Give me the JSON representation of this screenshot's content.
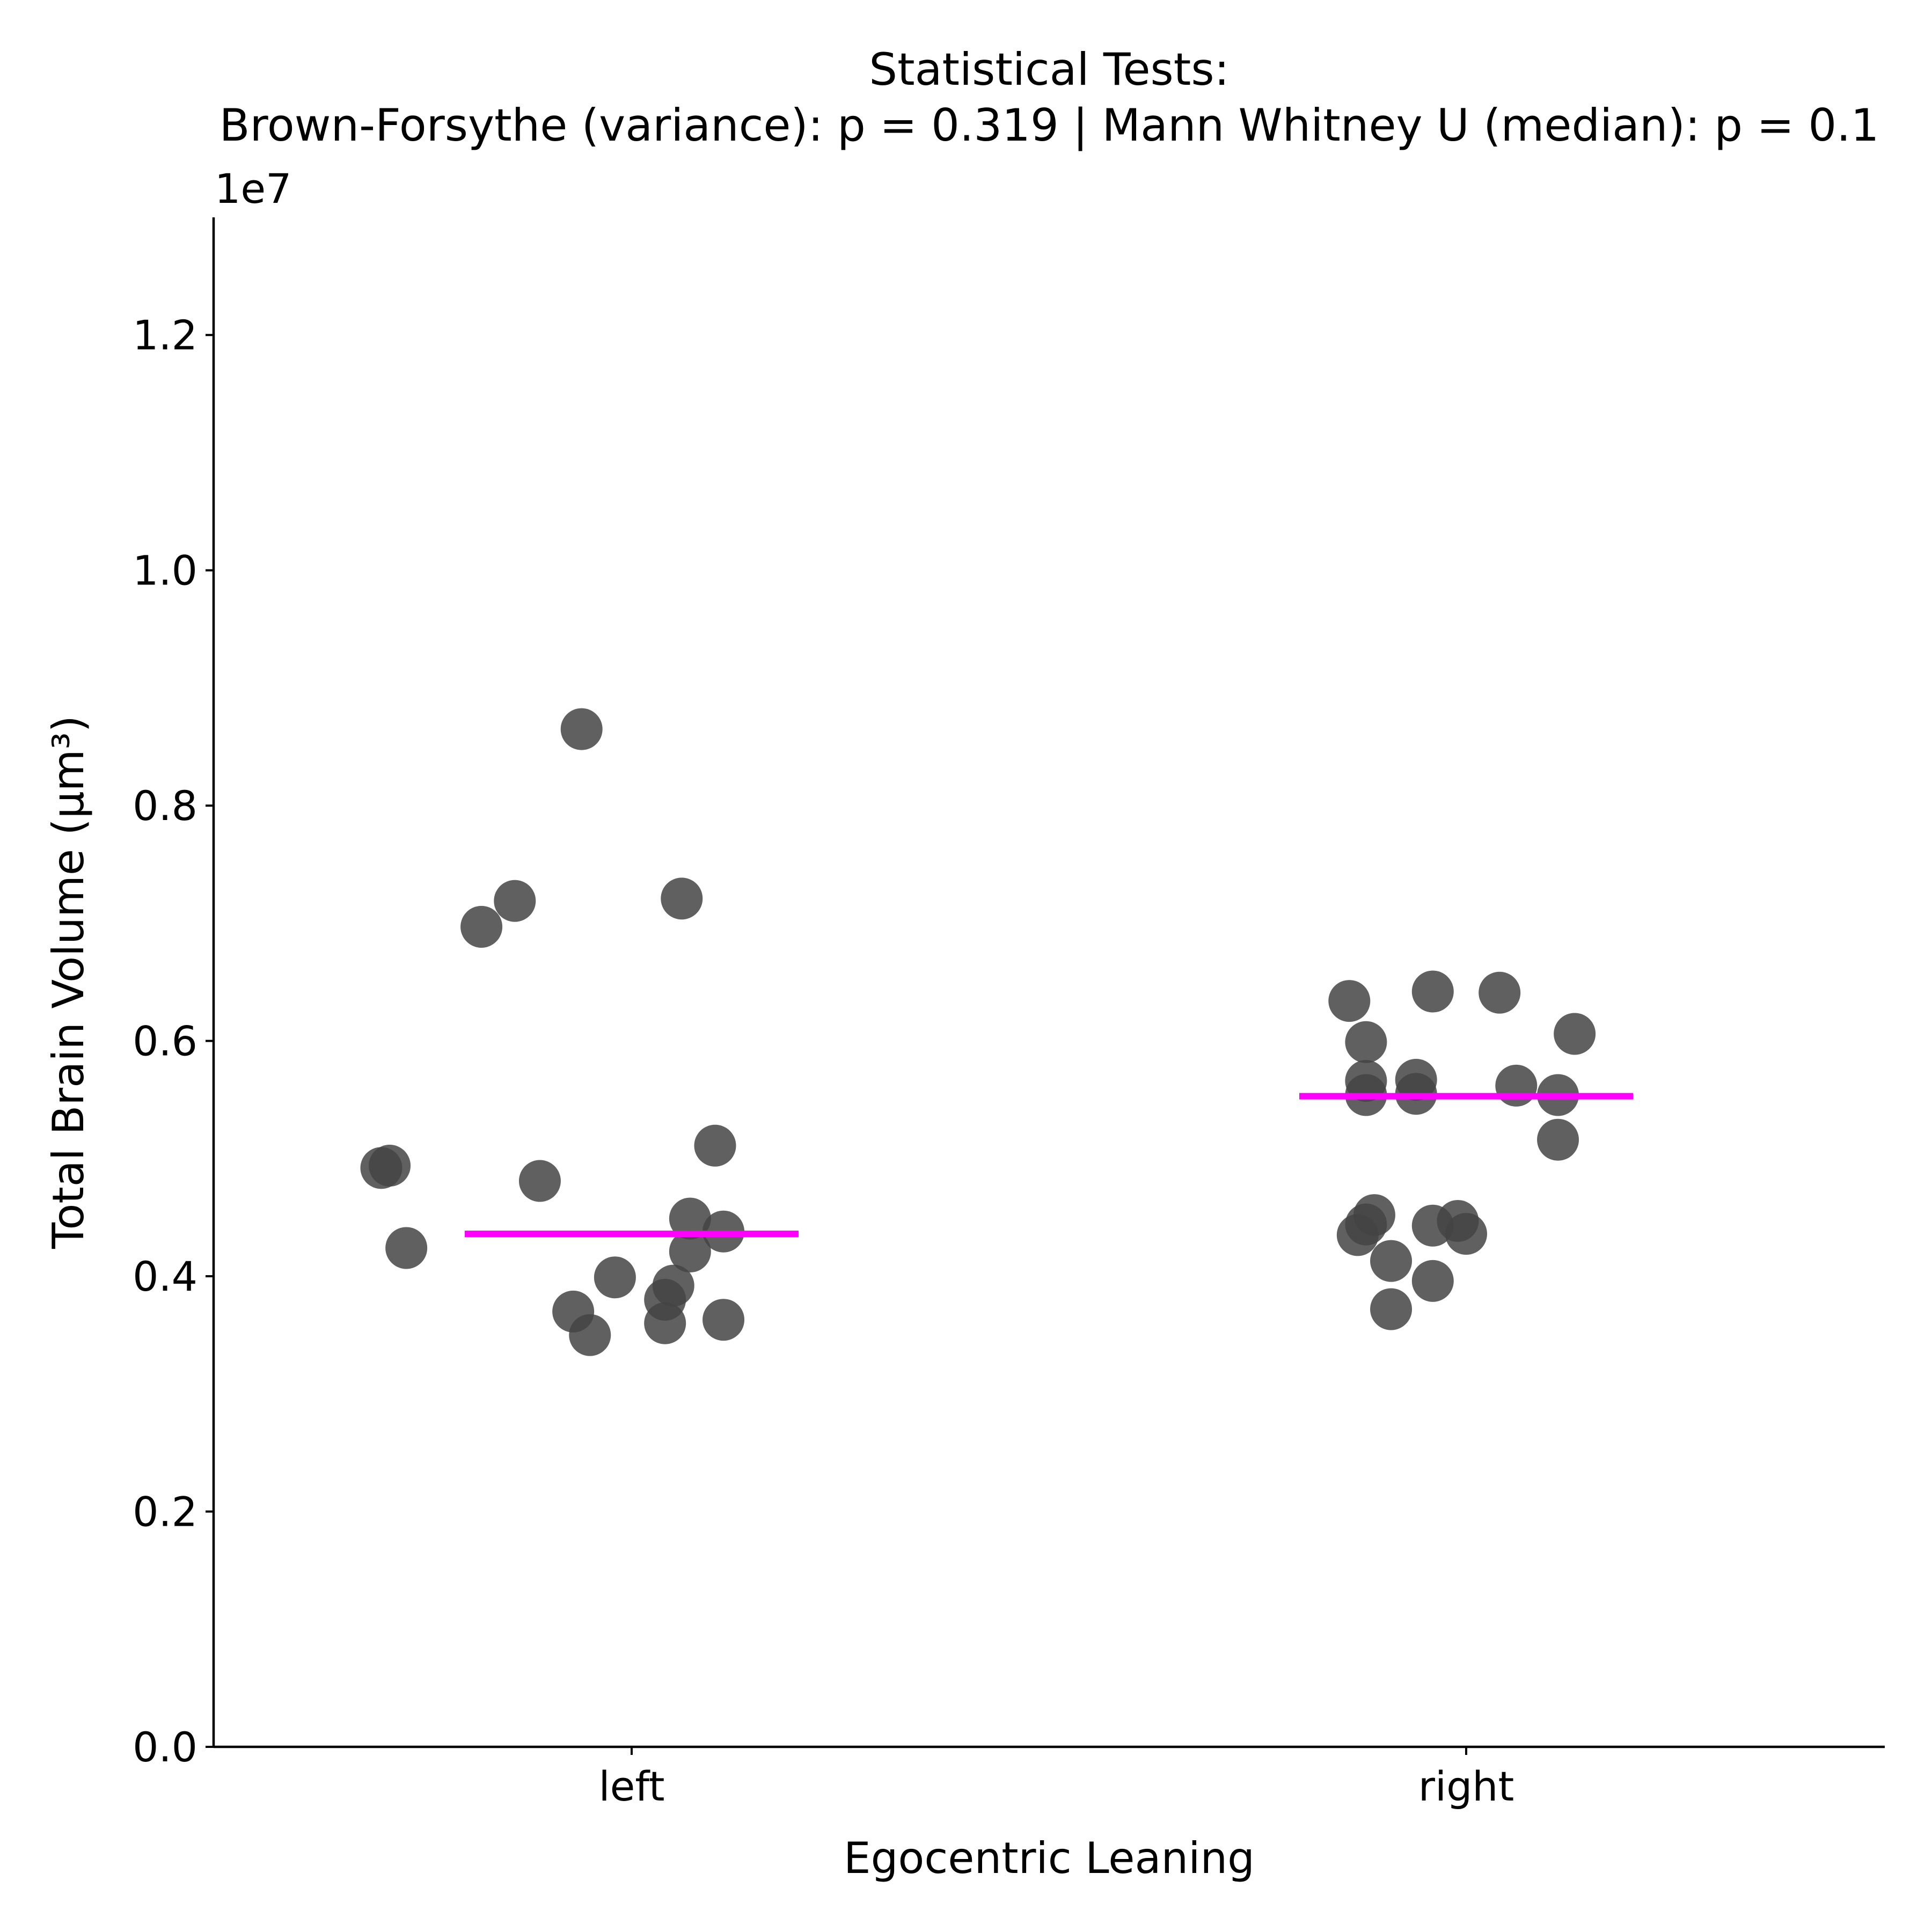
{
  "chart_data": {
    "type": "scatter",
    "title_lines": [
      "Statistical Tests:",
      "Brown-Forsythe (variance): p = 0.319 | Mann Whitney U (median): p = 0.1"
    ],
    "xlabel": "Egocentric Leaning",
    "ylabel": "Total Brain Volume (µm³)",
    "y_offset_label": "1e7",
    "y_multiplier": 10000000,
    "categories": [
      "left",
      "right"
    ],
    "ylim": [
      0,
      13000000
    ],
    "yticks": [
      0,
      2000000,
      4000000,
      6000000,
      8000000,
      10000000,
      12000000
    ],
    "ytick_labels": [
      "0.0",
      "0.2",
      "0.4",
      "0.6",
      "0.8",
      "1.0",
      "1.2"
    ],
    "grid": false,
    "legend": "none",
    "point_color": "#444444",
    "median_color": "#ff00ff",
    "series": [
      {
        "category": "left",
        "median": 4360000,
        "points": [
          {
            "x": -0.06,
            "y": 8650000
          },
          {
            "x": -0.14,
            "y": 7190000
          },
          {
            "x": 0.06,
            "y": 7210000
          },
          {
            "x": -0.18,
            "y": 6970000
          },
          {
            "x": 0.1,
            "y": 5110000
          },
          {
            "x": -0.29,
            "y": 4940000
          },
          {
            "x": -0.3,
            "y": 4920000
          },
          {
            "x": -0.11,
            "y": 4810000
          },
          {
            "x": 0.07,
            "y": 4490000
          },
          {
            "x": 0.11,
            "y": 4380000
          },
          {
            "x": 0.07,
            "y": 4210000
          },
          {
            "x": -0.27,
            "y": 4240000
          },
          {
            "x": -0.02,
            "y": 3990000
          },
          {
            "x": 0.05,
            "y": 3920000
          },
          {
            "x": 0.04,
            "y": 3800000
          },
          {
            "x": -0.07,
            "y": 3700000
          },
          {
            "x": 0.04,
            "y": 3600000
          },
          {
            "x": 0.11,
            "y": 3630000
          },
          {
            "x": -0.05,
            "y": 3500000
          }
        ]
      },
      {
        "category": "right",
        "median": 5530000,
        "points": [
          {
            "x": -0.14,
            "y": 6340000
          },
          {
            "x": -0.04,
            "y": 6420000
          },
          {
            "x": 0.04,
            "y": 6410000
          },
          {
            "x": 0.13,
            "y": 6060000
          },
          {
            "x": -0.12,
            "y": 5990000
          },
          {
            "x": -0.12,
            "y": 5660000
          },
          {
            "x": -0.06,
            "y": 5670000
          },
          {
            "x": 0.06,
            "y": 5620000
          },
          {
            "x": -0.12,
            "y": 5540000
          },
          {
            "x": -0.06,
            "y": 5550000
          },
          {
            "x": 0.11,
            "y": 5540000
          },
          {
            "x": 0.11,
            "y": 5160000
          },
          {
            "x": -0.11,
            "y": 4520000
          },
          {
            "x": -0.12,
            "y": 4440000
          },
          {
            "x": -0.13,
            "y": 4350000
          },
          {
            "x": -0.04,
            "y": 4430000
          },
          {
            "x": -0.01,
            "y": 4470000
          },
          {
            "x": 0.0,
            "y": 4360000
          },
          {
            "x": -0.09,
            "y": 4130000
          },
          {
            "x": -0.04,
            "y": 3960000
          },
          {
            "x": -0.09,
            "y": 3720000
          }
        ]
      }
    ]
  }
}
